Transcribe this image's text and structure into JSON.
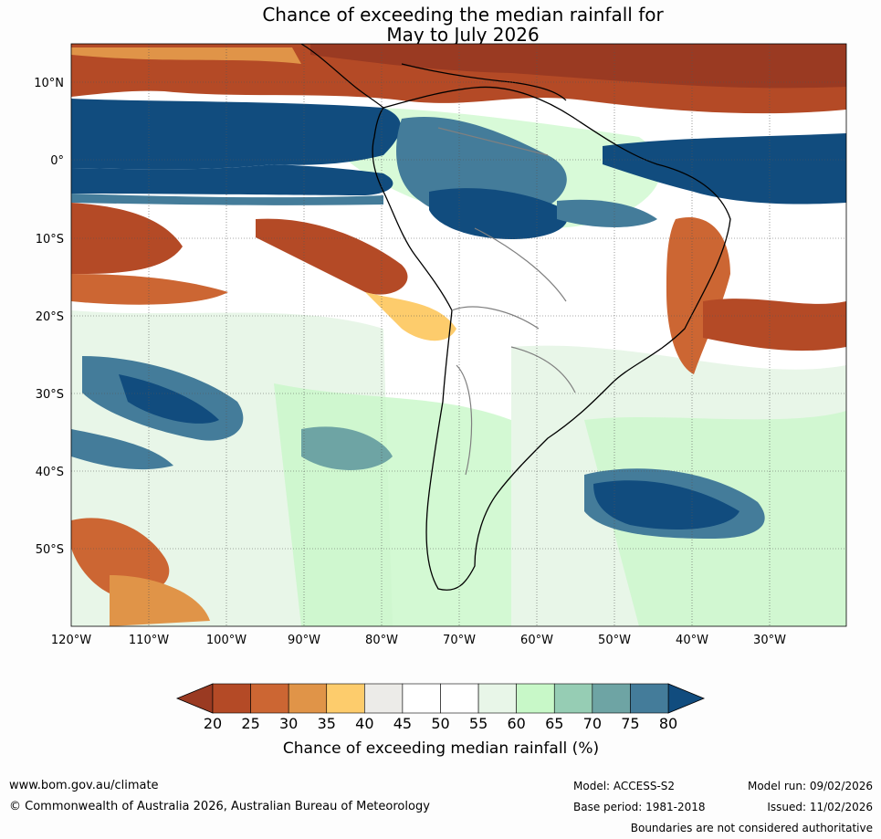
{
  "title": {
    "line1": "Chance of exceeding the median rainfall for",
    "line2": "May to July 2026"
  },
  "map": {
    "lat_labels": [
      "10°N",
      "0°",
      "10°S",
      "20°S",
      "30°S",
      "40°S",
      "50°S"
    ],
    "lon_labels": [
      "120°W",
      "110°W",
      "100°W",
      "90°W",
      "80°W",
      "70°W",
      "60°W",
      "50°W",
      "40°W",
      "30°W"
    ]
  },
  "colorbar": {
    "ticks": [
      "20",
      "25",
      "30",
      "35",
      "40",
      "45",
      "50",
      "55",
      "60",
      "65",
      "70",
      "75",
      "80"
    ],
    "colors": [
      "#9a3a22",
      "#b44a26",
      "#cc6633",
      "#e09448",
      "#fdcc6c",
      "#ecebe8",
      "#ffffff",
      "#ffffff",
      "#e8f6e8",
      "#c8f8c8",
      "#96cdb4",
      "#6ea4a4",
      "#447c9a",
      "#114c7e"
    ],
    "label": "Chance of exceeding median rainfall (%)"
  },
  "footer": {
    "website": "www.bom.gov.au/climate",
    "copyright": "© Commonwealth of Australia 2026, Australian Bureau of Meteorology",
    "model": "Model: ACCESS-S2",
    "base_period": "Base period: 1981-2018",
    "model_run": "Model run: 09/02/2026",
    "issued": "Issued: 11/02/2026",
    "disclaimer": "Boundaries are not considered authoritative"
  }
}
